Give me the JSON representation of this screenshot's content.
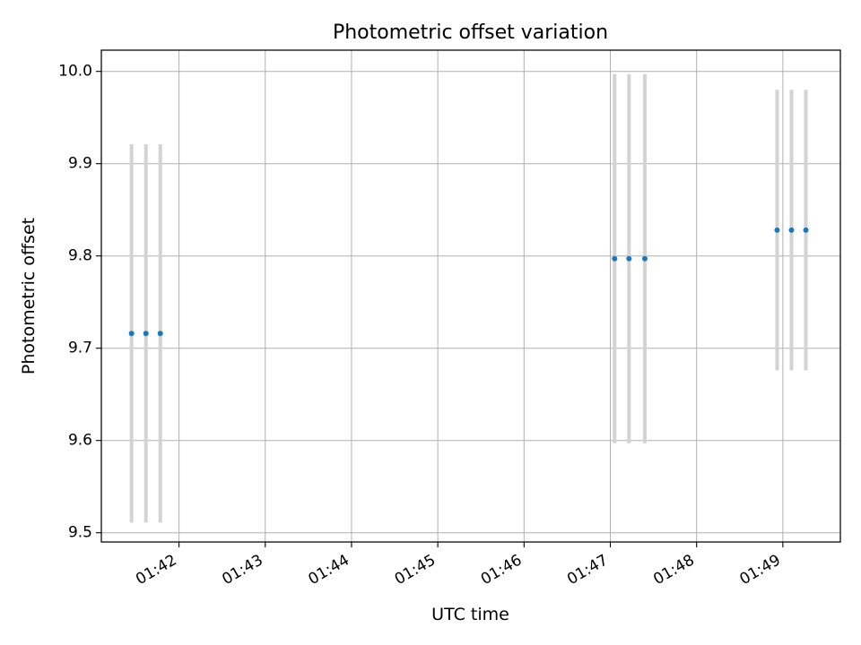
{
  "chart_data": {
    "type": "scatter",
    "title": "Photometric offset variation",
    "xlabel": "UTC time",
    "ylabel": "Photometric offset",
    "x_ticks": [
      "01:42",
      "01:43",
      "01:44",
      "01:45",
      "01:46",
      "01:47",
      "01:48",
      "01:49"
    ],
    "y_ticks": [
      "9.5",
      "9.6",
      "9.7",
      "9.8",
      "9.9",
      "10.0"
    ],
    "ylim": [
      9.49,
      10.023
    ],
    "xlim": [
      "01:41:06",
      "01:49:40"
    ],
    "grid": true,
    "colors": {
      "point": "#1f77b4",
      "errorbar": "#d3d3d3",
      "grid": "#b0b0b0"
    },
    "points": [
      {
        "time": "01:41:27",
        "y": 9.716,
        "err": 0.205
      },
      {
        "time": "01:41:37",
        "y": 9.716,
        "err": 0.205
      },
      {
        "time": "01:41:47",
        "y": 9.716,
        "err": 0.205
      },
      {
        "time": "01:47:03",
        "y": 9.797,
        "err": 0.2
      },
      {
        "time": "01:47:13",
        "y": 9.797,
        "err": 0.2
      },
      {
        "time": "01:47:24",
        "y": 9.797,
        "err": 0.2
      },
      {
        "time": "01:48:56",
        "y": 9.828,
        "err": 0.152
      },
      {
        "time": "01:49:06",
        "y": 9.828,
        "err": 0.152
      },
      {
        "time": "01:49:16",
        "y": 9.828,
        "err": 0.152
      }
    ]
  }
}
